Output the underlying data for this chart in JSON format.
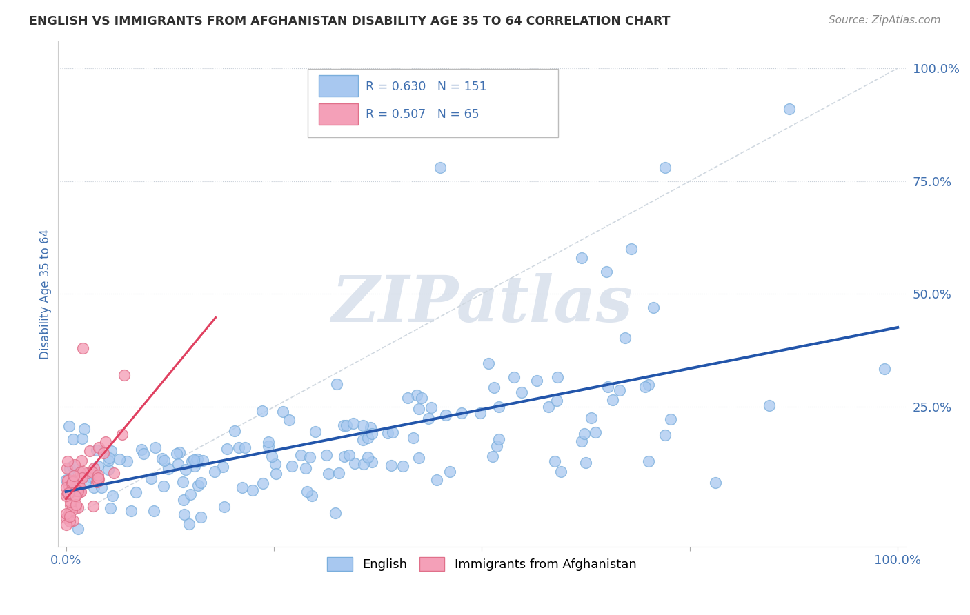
{
  "title": "ENGLISH VS IMMIGRANTS FROM AFGHANISTAN DISABILITY AGE 35 TO 64 CORRELATION CHART",
  "source_text": "Source: ZipAtlas.com",
  "ylabel": "Disability Age 35 to 64",
  "watermark": "ZIPatlas",
  "legend_entries": [
    {
      "label": "R = 0.630   N = 151",
      "color": "#a8c8f0",
      "edge": "#7aaedc"
    },
    {
      "label": "R = 0.507   N = 65",
      "color": "#f4a0b8",
      "edge": "#e0708a"
    }
  ],
  "legend_labels_bottom": [
    "English",
    "Immigrants from Afghanistan"
  ],
  "english_color": "#a8c8f0",
  "english_edge": "#7aaedc",
  "afg_color": "#f4a0b8",
  "afg_edge": "#e0708a",
  "english_line_color": "#2255aa",
  "afg_line_color": "#e04060",
  "title_color": "#303030",
  "axis_label_color": "#4070b0",
  "tick_label_color": "#4070b0",
  "background_color": "#ffffff",
  "watermark_color": "#dde4ee",
  "grid_color": "#c8cfd8",
  "diag_color": "#d0d8e0"
}
